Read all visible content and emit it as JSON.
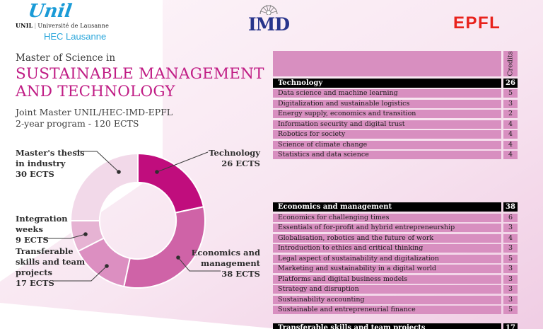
{
  "colors": {
    "accent_magenta": "#c01d85",
    "table_pink": "#d88fc0",
    "unil_blue": "#1a9bd7",
    "hec_blue": "#2aa6db",
    "imd_navy": "#27348b",
    "epfl_red": "#e8221c"
  },
  "header": {
    "unil_script": "Unil",
    "unil_wordmark_bold": "UNIL",
    "unil_wordmark_rest": "Université de Lausanne",
    "hec": "HEC Lausanne",
    "imd": "IMD",
    "epfl": "EPFL"
  },
  "intro": {
    "kicker": "Master of Science in",
    "title_line1": "SUSTAINABLE MANAGEMENT",
    "title_line2": "AND TECHNOLOGY",
    "subtitle_line1": "Joint Master UNIL/HEC-IMD-EPFL",
    "subtitle_line2": "2-year program - 120 ECTS"
  },
  "chart_data": {
    "type": "pie",
    "subtype": "donut",
    "unit": "ECTS",
    "total": 120,
    "start_angle_deg": 0,
    "direction": "clockwise",
    "inner_radius_ratio": 0.57,
    "segments": [
      {
        "label": "Technology",
        "value": 26,
        "color": "#c00d7d",
        "callout": "Technology\n26 ECTS"
      },
      {
        "label": "Economics and management",
        "value": 38,
        "color": "#cf63a7",
        "callout": "Economics and\nmanagement\n38 ECTS"
      },
      {
        "label": "Transferable skills and team projects",
        "value": 17,
        "color": "#dc8fc1",
        "callout": "Transferable\nskills and team\nprojects\n17 ECTS"
      },
      {
        "label": "Integration weeks",
        "value": 9,
        "color": "#e6b3d3",
        "callout": "Integration\nweeks\n9 ECTS"
      },
      {
        "label": "Master's thesis in industry",
        "value": 30,
        "color": "#f2d9e9",
        "callout": "Master's thesis\nin industry\n30 ECTS"
      }
    ]
  },
  "tables": {
    "credits_header": "Credits",
    "sections": [
      {
        "title": "Technology",
        "total": "26",
        "show_credits_header": true,
        "rows": [
          [
            "Data science and machine learning",
            "5"
          ],
          [
            "Digitalization and sustainable logistics",
            "3"
          ],
          [
            "Energy supply, economics and transition",
            "2"
          ],
          [
            "Information security and digital trust",
            "4"
          ],
          [
            "Robotics for society",
            "4"
          ],
          [
            "Science of climate change",
            "4"
          ],
          [
            "Statistics and data science",
            "4"
          ]
        ]
      },
      {
        "title": "Economics and management",
        "total": "38",
        "show_credits_header": false,
        "rows": [
          [
            "Economics for challenging times",
            "6"
          ],
          [
            "Essentials of for-profit and hybrid entrepreneurship",
            "3"
          ],
          [
            "Globalisation, robotics and the future of work",
            "4"
          ],
          [
            "Introduction to ethics and critical thinking",
            "3"
          ],
          [
            "Legal aspect of sustainability and digitalization",
            "5"
          ],
          [
            "Marketing and sustainability in a digital world",
            "3"
          ],
          [
            "Platforms and digital business models",
            "3"
          ],
          [
            "Strategy and disruption",
            "3"
          ],
          [
            "Sustainability accounting",
            "3"
          ],
          [
            "Sustainable and entrepreneurial finance",
            "5"
          ]
        ]
      },
      {
        "title": "Transferable skills and team projects",
        "total": "17",
        "show_credits_header": false,
        "rows": []
      }
    ]
  }
}
